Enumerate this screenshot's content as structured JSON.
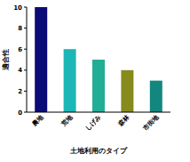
{
  "chart_data": {
    "type": "bar",
    "x_label": "土地利用のタイプ",
    "y_label": "適合性",
    "categories": [
      "農地",
      "荒地",
      "しげみ",
      "森林",
      "市街地"
    ],
    "values": [
      10,
      6,
      5,
      4,
      3
    ],
    "colors": [
      "#0b0b78",
      "#1cb6b6",
      "#22ae94",
      "#878a1c",
      "#12877f"
    ],
    "ylim": [
      0,
      10
    ],
    "yticks": [
      0,
      2,
      4,
      6,
      8,
      10
    ],
    "grid": false
  }
}
